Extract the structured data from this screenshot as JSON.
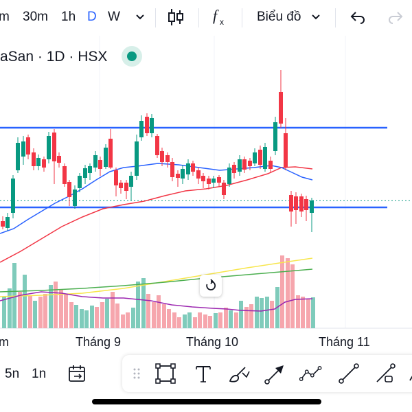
{
  "toolbar": {
    "timeframes": [
      "m",
      "30m",
      "1h",
      "D",
      "W"
    ],
    "active_timeframe": "D",
    "chart_type_label": "Biểu đồ",
    "icons": [
      "chevron-down-icon",
      "candles-icon",
      "indicators-fx-icon",
      "undo-icon",
      "redo-icon"
    ]
  },
  "symbol": {
    "title": "aSan · 1D · HSX",
    "status_color": "#089981"
  },
  "x_axis": {
    "labels": [
      "m",
      "Tháng 9",
      "Tháng 10",
      "Tháng 11"
    ]
  },
  "bottom": {
    "ranges": [
      "5n",
      "1n"
    ],
    "icons": [
      "calendar-goto-icon",
      "drag-handle-icon",
      "rectangle-icon",
      "text-icon",
      "brush-icon",
      "arrow-line-icon",
      "path-icon",
      "trend-line-icon",
      "ray-icon",
      "cursor-icon"
    ]
  },
  "colors": {
    "up": "#089981",
    "down": "#f23645",
    "up_volume": "#7fcbbb",
    "down_volume": "#f6a6ad",
    "hline": "#2962ff",
    "ma_blue": "#2962ff",
    "ma_red": "#f23645",
    "vol_ma_purple": "#9c27b0",
    "yellow_line": "#f7e64d",
    "green_line": "#4caf50",
    "current_price_line": "#089981"
  }
}
